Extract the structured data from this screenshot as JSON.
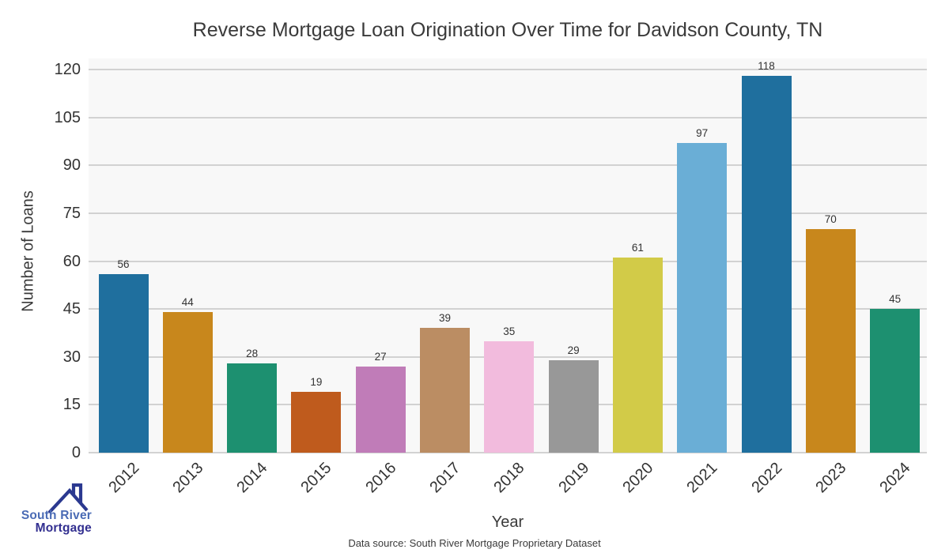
{
  "chart_data": {
    "type": "bar",
    "title": "Reverse Mortgage Loan Origination Over Time for Davidson County, TN",
    "xlabel": "Year",
    "ylabel": "Number of Loans",
    "categories": [
      "2012",
      "2013",
      "2014",
      "2015",
      "2016",
      "2017",
      "2018",
      "2019",
      "2020",
      "2021",
      "2022",
      "2023",
      "2024"
    ],
    "values": [
      56,
      44,
      28,
      19,
      27,
      39,
      35,
      29,
      61,
      97,
      118,
      70,
      45
    ],
    "bar_colors": [
      "#1f6f9e",
      "#c8871c",
      "#1d9070",
      "#bf5b1d",
      "#c07cb8",
      "#bb8d63",
      "#f2bbdd",
      "#989898",
      "#d2cb48",
      "#6aaed6",
      "#1f6f9e",
      "#c8871c",
      "#1d9070"
    ],
    "yticks": [
      0,
      15,
      30,
      45,
      60,
      75,
      90,
      105,
      120
    ],
    "ylim": [
      0,
      123.5
    ],
    "grid": "horizontal",
    "legend_position": "none",
    "value_labels": true,
    "plot_background": "#f8f8f8",
    "gridline_color": "#d2d2d2"
  },
  "footer": {
    "source_note": "Data source: South River Mortgage Proprietary Dataset"
  },
  "logo": {
    "name": "South River Mortgage",
    "line1": "South River",
    "line2": "Mortgage",
    "line1_color": "#4a6bb5",
    "line2_color": "#322f90",
    "icon": "house-roof-icon",
    "icon_color": "#2b3990"
  }
}
